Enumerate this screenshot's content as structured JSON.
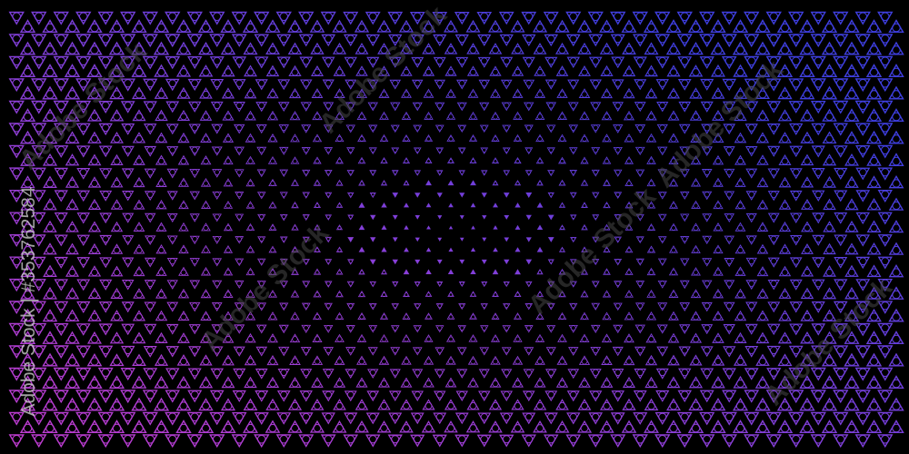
{
  "pattern": {
    "symbol": "triquetra-in-triangle",
    "colors": {
      "background": "#000000",
      "pink": "#c23ccf",
      "violet": "#8a3fd8",
      "blue": "#3f3fe0"
    }
  },
  "watermark": {
    "brand": "Adobe Stock",
    "side_label": "Adobe Stock | #353762584"
  }
}
